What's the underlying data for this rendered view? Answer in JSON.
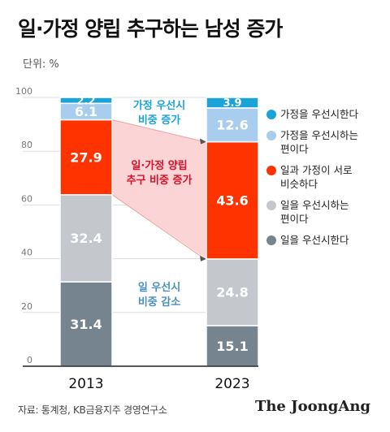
{
  "header": {
    "title": "일·가정 양립 추구하는 남성 증가",
    "unit": "단위: %"
  },
  "footer": {
    "source": "자료: 통계청, KB금융지주 경영연구소",
    "brand": "The JoongAng"
  },
  "colors": {
    "family_first": "#1aa3d9",
    "family_leaning": "#a9cdee",
    "balance": "#ff3300",
    "work_leaning": "#c4c8cc",
    "work_first": "#75848e",
    "balance_band": "#fbd5d6",
    "balance_band_border": "#e9a3a8",
    "annotation_family": "#1aa3d9",
    "annotation_balance": "#d8102a",
    "annotation_work": "#4a8fc0"
  },
  "annotations": {
    "family": [
      "가정 우선시",
      "비중 증가"
    ],
    "balance": [
      "일·가정 양립",
      "추구 비중 증가"
    ],
    "work": [
      "일 우선시",
      "비중 감소"
    ]
  },
  "chart_data": {
    "type": "bar",
    "stacked": true,
    "categories": [
      "2013",
      "2023"
    ],
    "ylim": [
      0,
      100
    ],
    "yticks": [
      0,
      20,
      40,
      60,
      80,
      100
    ],
    "grid": false,
    "legend_position": "right",
    "series": [
      {
        "name": "일을 우선시한다",
        "legend_lines": [
          "일을 우선시한다"
        ],
        "color_key": "work_first",
        "values": [
          31.4,
          15.1
        ]
      },
      {
        "name": "일을 우선시하는 편이다",
        "legend_lines": [
          "일을 우선시하는",
          "편이다"
        ],
        "color_key": "work_leaning",
        "values": [
          32.4,
          24.8
        ]
      },
      {
        "name": "일과 가정이 서로 비슷하다",
        "legend_lines": [
          "일과 가정이 서로",
          "비슷하다"
        ],
        "color_key": "balance",
        "values": [
          27.9,
          43.6
        ]
      },
      {
        "name": "가정을 우선시하는 편이다",
        "legend_lines": [
          "가정을 우선시하는",
          "편이다"
        ],
        "color_key": "family_leaning",
        "values": [
          6.1,
          12.6
        ]
      },
      {
        "name": "가정을 우선시한다",
        "legend_lines": [
          "가정을 우선시한다"
        ],
        "color_key": "family_first",
        "values": [
          2.2,
          3.9
        ]
      }
    ]
  }
}
